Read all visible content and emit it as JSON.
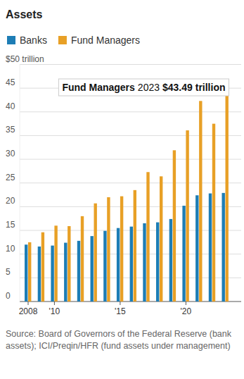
{
  "chart_data": {
    "type": "bar",
    "title": "Assets",
    "categories": [
      "2008",
      null,
      "'10",
      null,
      null,
      null,
      null,
      "'15",
      null,
      null,
      null,
      null,
      "'20",
      null,
      null,
      null
    ],
    "series": [
      {
        "name": "Banks",
        "color": "#1d7db5",
        "values": [
          12.0,
          11.6,
          11.8,
          12.4,
          12.8,
          13.8,
          14.9,
          15.5,
          15.8,
          16.5,
          16.7,
          17.4,
          20.2,
          22.4,
          22.8,
          22.9
        ]
      },
      {
        "name": "Fund Managers",
        "color": "#e8a026",
        "values": [
          12.5,
          14.6,
          16.0,
          15.9,
          18.0,
          20.7,
          22.0,
          22.2,
          23.5,
          27.3,
          26.4,
          31.9,
          36.1,
          42.3,
          37.5,
          43.49
        ]
      }
    ],
    "ylim": [
      0,
      50
    ],
    "yticks": [
      0,
      5,
      10,
      15,
      20,
      25,
      30,
      35,
      40,
      45,
      {
        "value": 50,
        "label": "$50 trillion"
      }
    ],
    "grid": true,
    "legend": "top",
    "annotations": [
      {
        "label": "Fund Managers",
        "year": "2023",
        "text": "$43.49 trillion"
      }
    ],
    "source": "Source: Board of Governors of the Federal Reserve (bank assets); ICI/Preqin/HFR (fund assets under management)"
  }
}
